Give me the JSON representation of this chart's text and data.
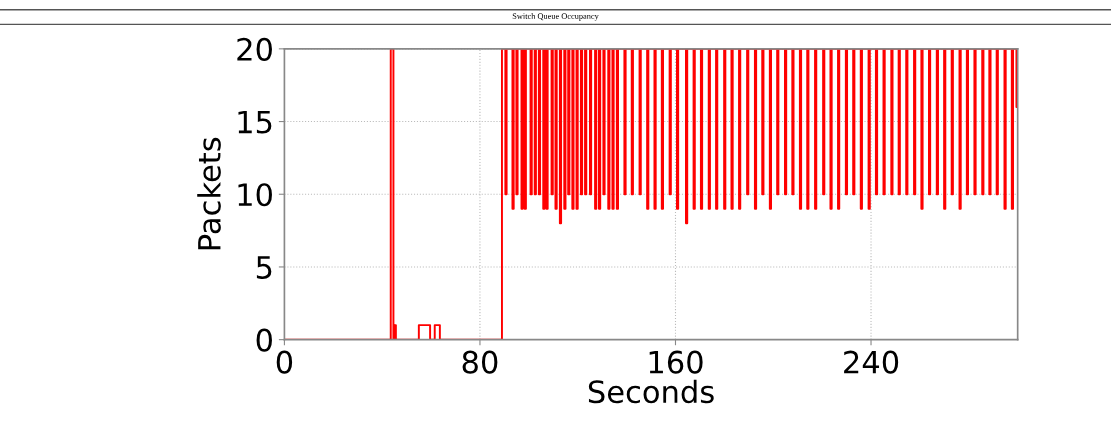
{
  "chart_data": {
    "type": "step",
    "title": "Switch Queue Occupancy",
    "xlabel": "Seconds",
    "ylabel": "Packets",
    "xlim": [
      0,
      300
    ],
    "xticks": [
      0,
      80,
      160,
      240
    ],
    "ylim": [
      0,
      20
    ],
    "yticks": [
      0,
      5,
      10,
      15,
      20
    ],
    "grid": true,
    "legend": false,
    "marker": "none",
    "line_style": "solid",
    "series": [
      {
        "color": "#ff0000",
        "x": [
          0,
          43.5,
          44.6,
          45.0,
          45.6,
          55.0,
          59.6,
          61.5,
          63.6,
          89.0,
          90.4,
          90.9,
          93.3,
          93.8,
          94.9,
          95.4,
          97.0,
          97.5,
          98.3,
          98.8,
          100.7,
          101.2,
          102.4,
          102.9,
          104.1,
          104.6,
          105.9,
          106.4,
          107.2,
          107.7,
          109.3,
          109.8,
          110.9,
          111.4,
          112.7,
          113.2,
          114.5,
          115.0,
          116.1,
          116.6,
          117.8,
          118.3,
          119.5,
          120.0,
          121.3,
          121.8,
          123.0,
          123.5,
          125.0,
          125.5,
          127.1,
          127.6,
          128.7,
          129.2,
          130.5,
          131.0,
          132.5,
          133.0,
          134.2,
          134.7,
          136.0,
          136.5,
          139.1,
          139.6,
          142.1,
          142.6,
          145.3,
          145.8,
          148.4,
          148.9,
          151.4,
          151.9,
          154.4,
          154.9,
          157.6,
          158.1,
          160.6,
          161.1,
          164.3,
          164.8,
          167.4,
          167.9,
          170.4,
          170.9,
          173.6,
          174.1,
          176.6,
          177.1,
          179.9,
          180.4,
          182.9,
          183.4,
          186.0,
          186.5,
          189.3,
          189.8,
          192.5,
          193.0,
          195.5,
          196.0,
          198.6,
          199.1,
          201.6,
          202.1,
          204.8,
          205.3,
          207.8,
          208.3,
          210.9,
          211.4,
          213.9,
          214.4,
          217.1,
          217.6,
          220.4,
          220.9,
          223.4,
          223.9,
          226.5,
          227.0,
          229.7,
          230.2,
          232.7,
          233.2,
          235.8,
          236.3,
          239.0,
          239.5,
          242.0,
          242.5,
          245.1,
          245.6,
          248.3,
          248.8,
          251.3,
          251.8,
          254.4,
          254.9,
          257.6,
          258.1,
          260.6,
          261.1,
          263.7,
          264.2,
          266.9,
          267.4,
          269.9,
          270.4,
          273.0,
          273.5,
          276.2,
          276.7,
          279.2,
          279.7,
          282.3,
          282.8,
          285.5,
          286.0,
          288.4,
          288.9,
          291.4,
          291.9,
          294.6,
          295.1,
          297.6,
          298.1,
          299.5,
          300
        ],
        "values": [
          0,
          20,
          0,
          1,
          0,
          1,
          0,
          1,
          0,
          20,
          10,
          20,
          9,
          20,
          10,
          20,
          9,
          20,
          9,
          20,
          10,
          20,
          10,
          20,
          10,
          20,
          9,
          20,
          9,
          20,
          10,
          20,
          9,
          20,
          8,
          20,
          9,
          20,
          10,
          20,
          9,
          20,
          9,
          20,
          10,
          20,
          10,
          20,
          10,
          20,
          9,
          20,
          9,
          20,
          10,
          20,
          9,
          20,
          9,
          20,
          9,
          20,
          10,
          20,
          10,
          20,
          10,
          20,
          9,
          20,
          9,
          20,
          9,
          20,
          10,
          20,
          9,
          20,
          8,
          20,
          9,
          20,
          9,
          20,
          9,
          20,
          9,
          20,
          9,
          20,
          9,
          20,
          9,
          20,
          10,
          20,
          9,
          20,
          10,
          20,
          9,
          20,
          10,
          20,
          10,
          20,
          10,
          20,
          9,
          20,
          9,
          20,
          9,
          20,
          10,
          20,
          9,
          20,
          9,
          20,
          10,
          20,
          10,
          20,
          9,
          20,
          9,
          20,
          10,
          20,
          10,
          20,
          10,
          20,
          10,
          20,
          10,
          20,
          10,
          20,
          9,
          20,
          10,
          20,
          10,
          20,
          9,
          20,
          10,
          20,
          9,
          20,
          10,
          20,
          10,
          20,
          10,
          20,
          10,
          20,
          10,
          20,
          9,
          20,
          9,
          20,
          16,
          16
        ]
      }
    ]
  }
}
